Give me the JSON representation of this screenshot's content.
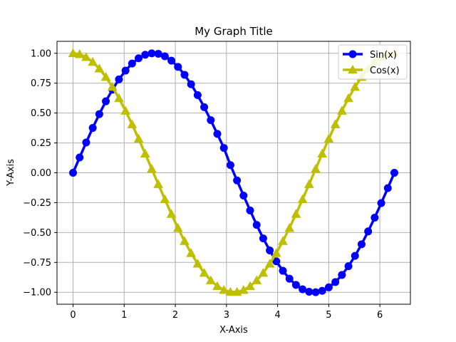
{
  "chart_data": {
    "type": "line",
    "title": "My Graph Title",
    "xlabel": "X-Axis",
    "ylabel": "Y-Axis",
    "xlim": [
      -0.314,
      6.597
    ],
    "ylim": [
      -1.1,
      1.1
    ],
    "x_ticks": [
      0,
      1,
      2,
      3,
      4,
      5,
      6
    ],
    "y_ticks": [
      -1.0,
      -0.75,
      -0.5,
      -0.25,
      0.0,
      0.25,
      0.5,
      0.75,
      1.0
    ],
    "x_tick_labels": [
      "0",
      "1",
      "2",
      "3",
      "4",
      "5",
      "6"
    ],
    "y_tick_labels": [
      "−1.00",
      "−0.75",
      "−0.50",
      "−0.25",
      "0.00",
      "0.25",
      "0.50",
      "0.75",
      "1.00"
    ],
    "grid": true,
    "legend_position": "top-right",
    "x": [
      0.0,
      0.1282,
      0.2565,
      0.3847,
      0.5129,
      0.6411,
      0.7694,
      0.8976,
      1.0258,
      1.1541,
      1.2823,
      1.4105,
      1.5387,
      1.667,
      1.7952,
      1.9234,
      2.0517,
      2.1799,
      2.3081,
      2.4363,
      2.5646,
      2.6928,
      2.821,
      2.9493,
      3.0775,
      3.2057,
      3.3339,
      3.4622,
      3.5904,
      3.7186,
      3.8468,
      3.9751,
      4.1033,
      4.2315,
      4.3598,
      4.488,
      4.6162,
      4.7444,
      4.8727,
      5.0009,
      5.1291,
      5.2574,
      5.3856,
      5.5138,
      5.642,
      5.7703,
      5.8985,
      6.0267,
      6.155,
      6.2832
    ],
    "series": [
      {
        "name": "Sin(x)",
        "color": "#0000ff",
        "marker": "circle",
        "values": [
          0.0,
          0.1279,
          0.2537,
          0.3753,
          0.4907,
          0.5981,
          0.6956,
          0.7818,
          0.8551,
          0.9145,
          0.9587,
          0.9872,
          0.9995,
          0.9954,
          0.9749,
          0.9383,
          0.8864,
          0.8201,
          0.7408,
          0.6499,
          0.549,
          0.4403,
          0.3258,
          0.2079,
          0.0641,
          -0.0641,
          -0.1905,
          -0.3151,
          -0.4357,
          -0.549,
          -0.6499,
          -0.7408,
          -0.8201,
          -0.8864,
          -0.9383,
          -0.9749,
          -0.9954,
          -0.9995,
          -0.9872,
          -0.9587,
          -0.9145,
          -0.8551,
          -0.7818,
          -0.6956,
          -0.5981,
          -0.4907,
          -0.3753,
          -0.2537,
          -0.1279,
          0.0
        ]
      },
      {
        "name": "Cos(x)",
        "color": "#bfbf00",
        "marker": "triangle",
        "values": [
          1.0,
          0.9918,
          0.9673,
          0.9269,
          0.8713,
          0.8014,
          0.7183,
          0.6235,
          0.5184,
          0.4048,
          0.2845,
          0.1596,
          0.0321,
          -0.096,
          -0.2225,
          -0.3453,
          -0.4625,
          -0.5721,
          -0.6723,
          -0.7614,
          -0.838,
          -0.9008,
          -0.9488,
          -0.9813,
          -0.9979,
          -0.9979,
          -0.9813,
          -0.9488,
          -0.9008,
          -0.838,
          -0.7614,
          -0.6723,
          -0.5721,
          -0.4625,
          -0.3453,
          -0.2225,
          -0.096,
          0.0321,
          0.1596,
          0.2845,
          0.4048,
          0.5184,
          0.6235,
          0.7183,
          0.8014,
          0.8713,
          0.9269,
          0.9673,
          0.9918,
          1.0
        ]
      }
    ]
  }
}
